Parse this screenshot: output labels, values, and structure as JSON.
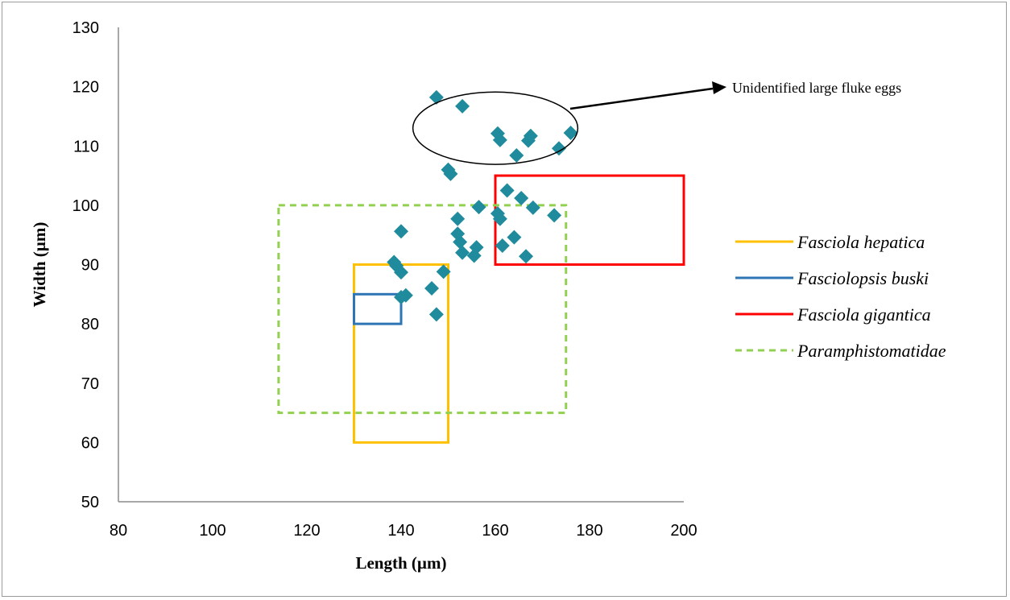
{
  "chart_data": {
    "type": "scatter",
    "xlabel": "Length (µm)",
    "ylabel": "Width (µm)",
    "xlim": [
      80,
      200
    ],
    "ylim": [
      50,
      130
    ],
    "xticks": [
      80,
      100,
      120,
      140,
      160,
      180,
      200
    ],
    "yticks": [
      50,
      60,
      70,
      80,
      90,
      100,
      110,
      120,
      130
    ],
    "grid": false,
    "legend_position": "right",
    "marker_color": "#1f8b9c",
    "points": [
      {
        "x": 147.5,
        "y": 118.2
      },
      {
        "x": 153,
        "y": 116.7
      },
      {
        "x": 160.5,
        "y": 112.1
      },
      {
        "x": 161,
        "y": 111
      },
      {
        "x": 167.5,
        "y": 111.7
      },
      {
        "x": 167,
        "y": 110.9
      },
      {
        "x": 176,
        "y": 112.2
      },
      {
        "x": 173.5,
        "y": 109.6
      },
      {
        "x": 164.5,
        "y": 108.4
      },
      {
        "x": 150,
        "y": 106
      },
      {
        "x": 150.5,
        "y": 105.3
      },
      {
        "x": 162.5,
        "y": 102.5
      },
      {
        "x": 165.5,
        "y": 101.2
      },
      {
        "x": 168,
        "y": 99.6
      },
      {
        "x": 156.5,
        "y": 99.7
      },
      {
        "x": 160.5,
        "y": 98.6
      },
      {
        "x": 161,
        "y": 97.7
      },
      {
        "x": 152,
        "y": 97.7
      },
      {
        "x": 172.5,
        "y": 98.3
      },
      {
        "x": 140,
        "y": 95.6
      },
      {
        "x": 152,
        "y": 95.2
      },
      {
        "x": 164,
        "y": 94.6
      },
      {
        "x": 152.5,
        "y": 93.8
      },
      {
        "x": 156,
        "y": 92.9
      },
      {
        "x": 161.5,
        "y": 93.2
      },
      {
        "x": 153,
        "y": 92
      },
      {
        "x": 155.5,
        "y": 91.5
      },
      {
        "x": 166.5,
        "y": 91.4
      },
      {
        "x": 138.5,
        "y": 90.4
      },
      {
        "x": 139,
        "y": 89.8
      },
      {
        "x": 140,
        "y": 88.7
      },
      {
        "x": 149,
        "y": 88.8
      },
      {
        "x": 146.5,
        "y": 86
      },
      {
        "x": 141,
        "y": 84.8
      },
      {
        "x": 140,
        "y": 84.5
      },
      {
        "x": 147.5,
        "y": 81.6
      }
    ],
    "rectangles": [
      {
        "name": "Fasciola hepatica",
        "color": "#ffc000",
        "dash": false,
        "x0": 130,
        "x1": 150,
        "y0": 60,
        "y1": 90
      },
      {
        "name": "Fasciolopsis buski",
        "color": "#2e75b6",
        "dash": false,
        "x0": 130,
        "x1": 140,
        "y0": 80,
        "y1": 85
      },
      {
        "name": "Fasciola gigantica",
        "color": "#ff0000",
        "dash": false,
        "x0": 160,
        "x1": 200,
        "y0": 90,
        "y1": 105
      },
      {
        "name": "Paramphistomatidae",
        "color": "#92d050",
        "dash": true,
        "x0": 114,
        "x1": 175,
        "y0": 65,
        "y1": 100
      }
    ],
    "annotation": {
      "text": "Unidentified large fluke eggs",
      "ellipse_center": {
        "x": 160,
        "y": 113
      },
      "ellipse_radius": {
        "x": 17.5,
        "y": 6.1
      }
    }
  }
}
